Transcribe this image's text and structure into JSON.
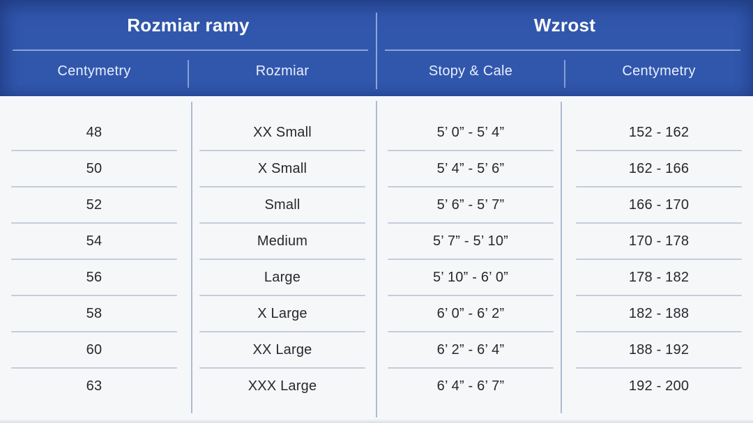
{
  "chart_data": {
    "type": "table",
    "column_groups": [
      {
        "title": "Rozmiar ramy",
        "columns": [
          "Centymetry",
          "Rozmiar"
        ]
      },
      {
        "title": "Wzrost",
        "columns": [
          "Stopy & Cale",
          "Centymetry"
        ]
      }
    ],
    "rows": [
      [
        "48",
        "XX Small",
        "5’ 0” - 5’ 4”",
        "152 - 162"
      ],
      [
        "50",
        "X Small",
        "5’ 4” - 5’ 6”",
        "162 - 166"
      ],
      [
        "52",
        "Small",
        "5’ 6” - 5’ 7”",
        "166 - 170"
      ],
      [
        "54",
        "Medium",
        "5’ 7” - 5’ 10”",
        "170 - 178"
      ],
      [
        "56",
        "Large",
        "5’ 10” - 6’ 0”",
        "178 - 182"
      ],
      [
        "58",
        "X Large",
        "6’ 0” - 6’ 2”",
        "182 - 188"
      ],
      [
        "60",
        "XX Large",
        "6’ 2” - 6’ 4”",
        "188 - 192"
      ],
      [
        "63",
        "XXX Large",
        "6’ 4” - 6’ 7”",
        "192 - 200"
      ]
    ]
  },
  "colors": {
    "header_bg": "#3157ad",
    "header_text": "#ffffff",
    "subheader_text": "#e9effc",
    "header_line": "#9db1dd",
    "body_bg": "#f6f7f9",
    "body_text": "#26282c",
    "row_line": "#c5cdda",
    "col_line": "#a2aecb"
  }
}
